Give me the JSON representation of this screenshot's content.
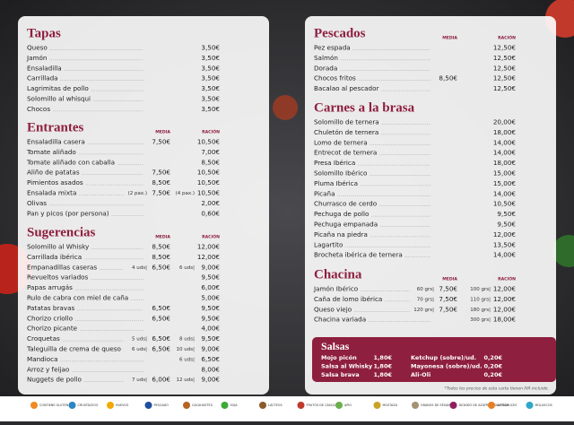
{
  "panels": [
    {
      "sections": [
        {
          "title": "Tapas",
          "items": [
            {
              "name": "Queso",
              "racion": "3,50€"
            },
            {
              "name": "Jamón",
              "racion": "3,50€"
            },
            {
              "name": "Ensaladilla",
              "racion": "3,50€"
            },
            {
              "name": "Carrillada",
              "racion": "3,50€"
            },
            {
              "name": "Lagrimitas de pollo",
              "racion": "3,50€"
            },
            {
              "name": "Solomillo al whisqui",
              "racion": "3,50€"
            },
            {
              "name": "Chocos",
              "racion": "3,50€"
            }
          ]
        },
        {
          "title": "Entrantes",
          "headers": {
            "media": "MEDIA",
            "racion": "RACIÓN"
          },
          "items": [
            {
              "name": "Ensaladilla casera",
              "media": "7,50€",
              "racion": "10,50€"
            },
            {
              "name": "Tomate aliñado",
              "racion": "7,00€"
            },
            {
              "name": "Tomate aliñado con caballa",
              "racion": "8,50€"
            },
            {
              "name": "Aliño de patatas",
              "media": "7,50€",
              "racion": "10,50€"
            },
            {
              "name": "Pimientos asados",
              "media": "8,50€",
              "racion": "10,50€"
            },
            {
              "name": "Ensalada mixta",
              "media_qty": "(2 pax.)",
              "media": "7,50€",
              "racion_qty": "(4 pax.)",
              "racion": "10,50€"
            },
            {
              "name": "Olivas",
              "racion": "2,00€"
            },
            {
              "name": "Pan y picos (por persona)",
              "racion": "0,60€"
            }
          ]
        },
        {
          "title": "Sugerencias",
          "headers": {
            "media": "MEDIA",
            "racion": "RACIÓN"
          },
          "items": [
            {
              "name": "Solomillo al Whisky",
              "media": "8,50€",
              "racion": "12,00€"
            },
            {
              "name": "Carrillada ibérica",
              "media": "8,50€",
              "racion": "12,00€"
            },
            {
              "name": "Empanadillas caseras",
              "media_qty": "4 uds|",
              "media": "6,50€",
              "racion_qty": "6 uds|",
              "racion": "9,00€"
            },
            {
              "name": "Revueltos variados",
              "racion": "9,50€"
            },
            {
              "name": "Papas arrugás",
              "racion": "6,00€"
            },
            {
              "name": "Rulo de cabra con miel de caña",
              "racion": "5,00€"
            },
            {
              "name": "Patatas bravas",
              "media": "6,50€",
              "racion": "9,50€"
            },
            {
              "name": "Chorizo criollo",
              "media": "6,50€",
              "racion": "9,50€"
            },
            {
              "name": "Chorizo picante",
              "racion": "4,00€"
            },
            {
              "name": "Croquetas",
              "media_qty": "5 uds|",
              "media": "6,50€",
              "racion_qty": "8 uds|",
              "racion": "9,50€"
            },
            {
              "name": "Taleguilla de crema de queso",
              "media_qty": "6 uds|",
              "media": "6,50€",
              "racion_qty": "10 uds|",
              "racion": "9,00€"
            },
            {
              "name": "Mandioca",
              "racion_qty": "6 uds|",
              "racion": "6,50€"
            },
            {
              "name": "Arroz y feijao",
              "racion": "8,00€"
            },
            {
              "name": "Nuggets de pollo",
              "media_qty": "7 uds|",
              "media": "6,00€",
              "racion_qty": "12 uds|",
              "racion": "9,00€"
            }
          ]
        }
      ]
    },
    {
      "sections": [
        {
          "title": "Pescados",
          "headers": {
            "media": "MEDIA",
            "racion": "RACIÓN"
          },
          "items": [
            {
              "name": "Pez espada",
              "racion": "12,50€"
            },
            {
              "name": "Salmón",
              "racion": "12,50€"
            },
            {
              "name": "Dorada",
              "racion": "12,50€"
            },
            {
              "name": "Chocos fritos",
              "media": "8,50€",
              "racion": "12,50€"
            },
            {
              "name": "Bacalao al pescador",
              "racion": "12,50€"
            }
          ]
        },
        {
          "title": "Carnes a la brasa",
          "items": [
            {
              "name": "Solomillo de ternera",
              "racion": "20,00€"
            },
            {
              "name": "Chuletón de ternera",
              "racion": "18,00€"
            },
            {
              "name": "Lomo de ternera",
              "racion": "14,00€"
            },
            {
              "name": "Entrecot de ternera",
              "racion": "14,00€"
            },
            {
              "name": "Presa Ibérica",
              "racion": "18,00€"
            },
            {
              "name": "Solomillo Ibérico",
              "racion": "15,00€"
            },
            {
              "name": "Pluma Ibérica",
              "racion": "15,00€"
            },
            {
              "name": "Picaña",
              "racion": "14,00€"
            },
            {
              "name": "Churrasco de cerdo",
              "racion": "10,50€"
            },
            {
              "name": "Pechuga de pollo",
              "racion": "9,50€"
            },
            {
              "name": "Pechuga empanada",
              "racion": "9,50€"
            },
            {
              "name": "Picaña na piedra",
              "racion": "12,00€"
            },
            {
              "name": "Lagartito",
              "racion": "13,50€"
            },
            {
              "name": "Brocheta ibérica de ternera",
              "racion": "14,00€"
            }
          ]
        },
        {
          "title": "Chacina",
          "headers": {
            "media": "MEDIA",
            "racion": "RACIÓN"
          },
          "items": [
            {
              "name": "Jamón Ibérico",
              "media_qty": "60 grs|",
              "media": "7,50€",
              "racion_qty": "100 grs|",
              "racion": "12,00€"
            },
            {
              "name": "Caña de lomo ibérica",
              "media_qty": "70 grs|",
              "media": "7,50€",
              "racion_qty": "110 grs|",
              "racion": "12,00€"
            },
            {
              "name": "Queso viejo",
              "media_qty": "120 grs|",
              "media": "7,50€",
              "racion_qty": "180 grs|",
              "racion": "12,00€"
            },
            {
              "name": "Chacina variada",
              "racion_qty": "300 grs|",
              "racion": "18,00€"
            }
          ]
        }
      ]
    }
  ],
  "salsas": {
    "title": "Salsas",
    "items": [
      {
        "name": "Mojo picón",
        "price": "1,80€"
      },
      {
        "name": "Ketchup (sobre)/ud.",
        "price": "0,20€"
      },
      {
        "name": "Salsa al Whisky",
        "price": "1,80€"
      },
      {
        "name": "Mayonesa (sobre)/ud.",
        "price": "0,20€"
      },
      {
        "name": "Salsa brava",
        "price": "1,80€"
      },
      {
        "name": "Ali-Oli",
        "price": "0,20€"
      }
    ]
  },
  "footnote": "*Todos los precios de esta carta tienen IVA incluido.",
  "allergens": [
    {
      "label": "CONTIENE GLUTEN",
      "color": "#f08a24"
    },
    {
      "label": "CRUSTÁCEOS",
      "color": "#2b86c5"
    },
    {
      "label": "HUEVOS",
      "color": "#f2a900"
    },
    {
      "label": "PESCADO",
      "color": "#1f4e9c"
    },
    {
      "label": "CACAHUETES",
      "color": "#b5651d"
    },
    {
      "label": "SOJA",
      "color": "#3aa935"
    },
    {
      "label": "LÁCTEOS",
      "color": "#8a5a2b"
    },
    {
      "label": "FRUTOS DE CÁSCARA",
      "color": "#c0392b"
    },
    {
      "label": "APIO",
      "color": "#6ab04c"
    },
    {
      "label": "MOSTAZA",
      "color": "#c9a227"
    },
    {
      "label": "GRANOS DE SÉSAMO",
      "color": "#a39274"
    },
    {
      "label": "DIÓXIDO DE AZUFRE Y SULFITOS",
      "color": "#8e1f5e"
    },
    {
      "label": "ALTRAMUCES",
      "color": "#e67e22"
    },
    {
      "label": "MOLUSCOS",
      "color": "#2fa7c9"
    }
  ]
}
